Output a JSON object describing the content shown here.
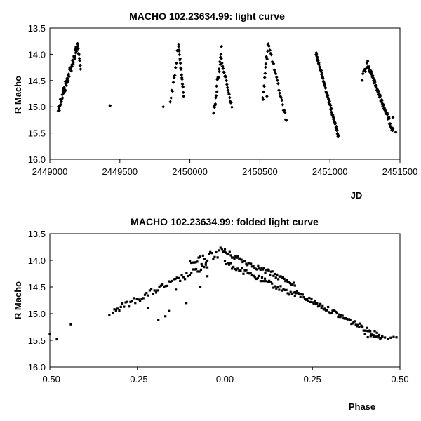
{
  "chart_data": [
    {
      "type": "scatter",
      "title": "MACHO 102.23634.99: light curve",
      "xlabel": "JD",
      "ylabel": "R Macho",
      "xlim": [
        2449000,
        2451500
      ],
      "ylim": [
        13.5,
        16.0
      ],
      "y_inverted": true,
      "grid": false,
      "xticks": [
        "2449000",
        "2449500",
        "2450000",
        "2450500",
        "2451000",
        "2451500"
      ],
      "yticks": [
        "13.5",
        "14.0",
        "14.5",
        "15.0",
        "15.5",
        "16.0"
      ],
      "series": [
        {
          "segments": [
            {
              "x": [
                2449060,
                2449200
              ],
              "y": [
                15.05,
                13.82
              ],
              "spread": 0.18,
              "n": 55
            },
            {
              "x": [
                2449200,
                2449220
              ],
              "y": [
                13.85,
                14.3
              ],
              "spread": 0.08,
              "n": 10
            },
            {
              "x": [
                2449860,
                2449920
              ],
              "y": [
                14.95,
                13.82
              ],
              "spread": 0.2,
              "n": 12
            },
            {
              "x": [
                2449920,
                2449955
              ],
              "y": [
                13.85,
                14.75
              ],
              "spread": 0.1,
              "n": 18
            },
            {
              "x": [
                2450170,
                2450225
              ],
              "y": [
                15.12,
                13.95
              ],
              "spread": 0.2,
              "n": 20
            },
            {
              "x": [
                2450225,
                2450300
              ],
              "y": [
                14.1,
                15.0
              ],
              "spread": 0.1,
              "n": 20
            },
            {
              "x": [
                2450520,
                2450560
              ],
              "y": [
                14.9,
                13.72
              ],
              "spread": 0.25,
              "n": 15
            },
            {
              "x": [
                2450560,
                2450690
              ],
              "y": [
                13.8,
                15.27
              ],
              "spread": 0.1,
              "n": 25
            },
            {
              "x": [
                2450900,
                2451060
              ],
              "y": [
                13.97,
                15.55
              ],
              "spread": 0.08,
              "n": 70
            },
            {
              "x": [
                2451230,
                2451270
              ],
              "y": [
                14.45,
                14.15
              ],
              "spread": 0.12,
              "n": 8
            },
            {
              "x": [
                2451270,
                2451450
              ],
              "y": [
                14.2,
                15.45
              ],
              "spread": 0.1,
              "n": 75
            }
          ],
          "points": [
            [
              2449430,
              14.98
            ],
            [
              2451450,
              15.2
            ],
            [
              2451470,
              15.48
            ],
            [
              2449810,
              15.0
            ],
            [
              2450550,
              14.8
            ]
          ]
        }
      ]
    },
    {
      "type": "scatter",
      "title": "MACHO 102.23634.99: folded light curve",
      "xlabel": "Phase",
      "ylabel": "R Macho",
      "xlim": [
        -0.5,
        0.5
      ],
      "ylim": [
        13.5,
        16.0
      ],
      "y_inverted": true,
      "grid": false,
      "xticks": [
        "-0.50",
        "-0.25",
        "0.00",
        "0.25",
        "0.50"
      ],
      "yticks": [
        "13.5",
        "14.0",
        "14.5",
        "15.0",
        "15.5",
        "16.0"
      ],
      "series": [
        {
          "segments": [
            {
              "x": [
                -0.32,
                -0.05
              ],
              "y": [
                14.95,
                14.1
              ],
              "spread": 0.12,
              "n": 60
            },
            {
              "x": [
                -0.1,
                0.0
              ],
              "y": [
                14.1,
                13.8
              ],
              "spread": 0.18,
              "n": 25
            },
            {
              "x": [
                0.0,
                0.2
              ],
              "y": [
                13.85,
                14.45
              ],
              "spread": 0.1,
              "n": 60
            },
            {
              "x": [
                0.0,
                0.2
              ],
              "y": [
                14.05,
                14.65
              ],
              "spread": 0.1,
              "n": 50
            },
            {
              "x": [
                0.2,
                0.45
              ],
              "y": [
                14.6,
                15.45
              ],
              "spread": 0.1,
              "n": 80
            },
            {
              "x": [
                0.4,
                0.49
              ],
              "y": [
                15.4,
                15.45
              ],
              "spread": 0.08,
              "n": 12
            }
          ],
          "points": [
            [
              -0.5,
              15.38
            ],
            [
              -0.48,
              15.48
            ],
            [
              -0.44,
              15.2
            ],
            [
              -0.33,
              15.03
            ],
            [
              -0.22,
              14.9
            ],
            [
              -0.19,
              15.12
            ],
            [
              -0.17,
              15.05
            ],
            [
              -0.16,
              14.95
            ],
            [
              -0.11,
              14.8
            ],
            [
              -0.14,
              14.55
            ],
            [
              -0.07,
              14.5
            ],
            [
              -0.05,
              14.3
            ]
          ]
        }
      ]
    }
  ]
}
